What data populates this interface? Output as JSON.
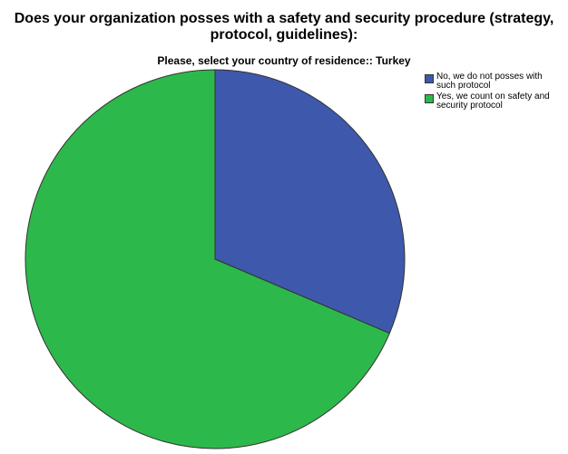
{
  "chart_data": {
    "type": "pie",
    "title": "Does your organization posses with a safety and security procedure (strategy, protocol, guidelines):",
    "subtitle": "Please, select your country of residence:: Turkey",
    "categories": [
      "No, we do not posses with such protocol",
      "Yes, we count on safety and security protocol"
    ],
    "values": [
      31.4,
      68.6
    ],
    "colors": [
      "#3e58ac",
      "#2db84b"
    ]
  }
}
